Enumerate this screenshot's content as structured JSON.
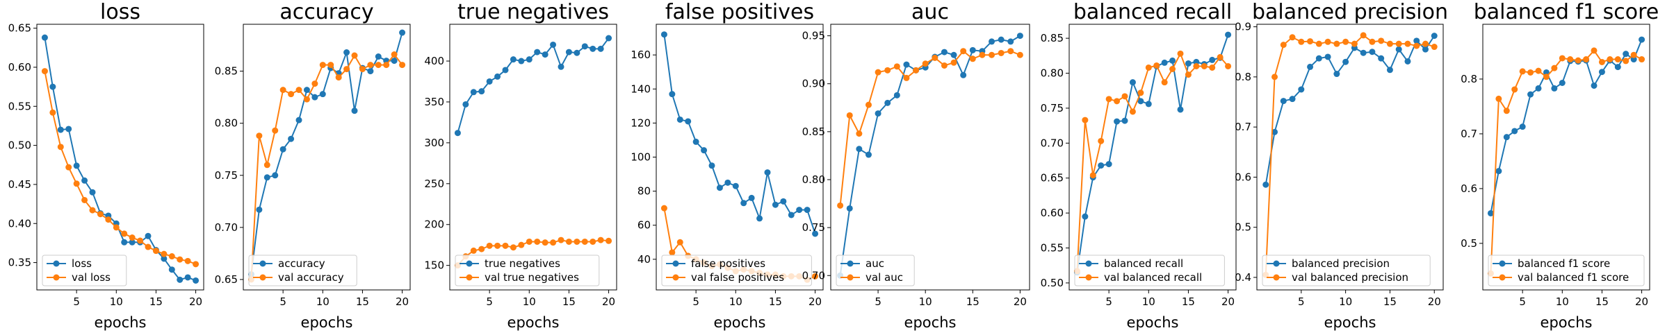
{
  "colors": {
    "train": "#1f77b4",
    "val": "#ff7f0e"
  },
  "chart_data": [
    {
      "type": "line",
      "title": "loss",
      "xlabel": "epochs",
      "ylabel": "",
      "xlim": [
        0.0,
        21.0
      ],
      "ylim": [
        0.315,
        0.655
      ],
      "xticks": [
        5,
        10,
        15,
        20
      ],
      "yticks": [
        0.35,
        0.4,
        0.45,
        0.5,
        0.55,
        0.6,
        0.65
      ],
      "ytick_labels": [
        "0.35",
        "0.40",
        "0.45",
        "0.50",
        "0.55",
        "0.60",
        "0.65"
      ],
      "legend_position": "lower-left",
      "x": [
        1,
        2,
        3,
        4,
        5,
        6,
        7,
        8,
        9,
        10,
        11,
        12,
        13,
        14,
        15,
        16,
        17,
        18,
        19,
        20
      ],
      "series": [
        {
          "name": "loss",
          "values": [
            0.638,
            0.575,
            0.52,
            0.521,
            0.474,
            0.455,
            0.44,
            0.413,
            0.41,
            0.4,
            0.376,
            0.376,
            0.376,
            0.384,
            0.366,
            0.355,
            0.341,
            0.328,
            0.331,
            0.327
          ]
        },
        {
          "name": "val loss",
          "values": [
            0.595,
            0.542,
            0.498,
            0.472,
            0.451,
            0.43,
            0.417,
            0.412,
            0.405,
            0.395,
            0.387,
            0.382,
            0.378,
            0.37,
            0.365,
            0.361,
            0.358,
            0.354,
            0.352,
            0.348
          ]
        }
      ]
    },
    {
      "type": "line",
      "title": "accuracy",
      "xlabel": "epochs",
      "ylabel": "",
      "xlim": [
        0.0,
        21.0
      ],
      "ylim": [
        0.64,
        0.895
      ],
      "xticks": [
        5,
        10,
        15,
        20
      ],
      "yticks": [
        0.65,
        0.7,
        0.75,
        0.8,
        0.85
      ],
      "ytick_labels": [
        "0.65",
        "0.70",
        "0.75",
        "0.80",
        "0.85"
      ],
      "legend_position": "lower-left",
      "x": [
        1,
        2,
        3,
        4,
        5,
        6,
        7,
        8,
        9,
        10,
        11,
        12,
        13,
        14,
        15,
        16,
        17,
        18,
        19,
        20
      ],
      "series": [
        {
          "name": "accuracy",
          "values": [
            0.655,
            0.717,
            0.748,
            0.75,
            0.775,
            0.785,
            0.803,
            0.832,
            0.825,
            0.828,
            0.853,
            0.848,
            0.868,
            0.812,
            0.853,
            0.85,
            0.864,
            0.86,
            0.86,
            0.887
          ]
        },
        {
          "name": "val accuracy",
          "values": [
            0.65,
            0.788,
            0.76,
            0.793,
            0.832,
            0.828,
            0.832,
            0.823,
            0.838,
            0.856,
            0.856,
            0.844,
            0.852,
            0.865,
            0.852,
            0.856,
            0.856,
            0.856,
            0.866,
            0.856
          ]
        }
      ]
    },
    {
      "type": "line",
      "title": "true negatives",
      "xlabel": "epochs",
      "ylabel": "",
      "xlim": [
        0.0,
        21.0
      ],
      "ylim": [
        120.0,
        445.0
      ],
      "xticks": [
        5,
        10,
        15,
        20
      ],
      "yticks": [
        150,
        200,
        250,
        300,
        350,
        400
      ],
      "ytick_labels": [
        "150",
        "200",
        "250",
        "300",
        "350",
        "400"
      ],
      "legend_position": "lower-left",
      "x": [
        1,
        2,
        3,
        4,
        5,
        6,
        7,
        8,
        9,
        10,
        11,
        12,
        13,
        14,
        15,
        16,
        17,
        18,
        19,
        20
      ],
      "series": [
        {
          "name": "true negatives",
          "values": [
            312,
            347,
            362,
            363,
            375,
            381,
            389,
            402,
            400,
            402,
            411,
            408,
            420,
            393,
            411,
            410,
            418,
            415,
            415,
            428
          ]
        },
        {
          "name": "val true negatives",
          "values": [
            150,
            161,
            168,
            170,
            174,
            174,
            174,
            172,
            175,
            179,
            179,
            178,
            178,
            181,
            179,
            179,
            179,
            179,
            181,
            180
          ]
        }
      ]
    },
    {
      "type": "line",
      "title": "false positives",
      "xlabel": "epochs",
      "ylabel": "",
      "xlim": [
        0.0,
        21.0
      ],
      "ylim": [
        22.0,
        178.0
      ],
      "xticks": [
        5,
        10,
        15,
        20
      ],
      "yticks": [
        40,
        60,
        80,
        100,
        120,
        140,
        160
      ],
      "ytick_labels": [
        "40",
        "60",
        "80",
        "100",
        "120",
        "140",
        "160"
      ],
      "legend_position": "lower-left",
      "x": [
        1,
        2,
        3,
        4,
        5,
        6,
        7,
        8,
        9,
        10,
        11,
        12,
        13,
        14,
        15,
        16,
        17,
        18,
        19,
        20
      ],
      "series": [
        {
          "name": "false positives",
          "values": [
            172,
            137,
            122,
            121,
            109,
            104,
            95,
            82,
            85,
            83,
            73,
            76,
            64,
            91,
            72,
            74,
            66,
            69,
            69,
            55
          ]
        },
        {
          "name": "val false positives",
          "values": [
            70,
            44,
            50,
            42,
            40,
            38,
            36,
            37,
            35,
            33,
            34,
            33,
            32,
            31,
            31,
            30,
            30,
            30,
            28,
            30
          ]
        }
      ]
    },
    {
      "type": "line",
      "title": "auc",
      "xlabel": "epochs",
      "ylabel": "",
      "xlim": [
        0.0,
        21.0
      ],
      "ylim": [
        0.685,
        0.962
      ],
      "xticks": [
        5,
        10,
        15,
        20
      ],
      "yticks": [
        0.7,
        0.75,
        0.8,
        0.85,
        0.9,
        0.95
      ],
      "ytick_labels": [
        "0.70",
        "0.75",
        "0.80",
        "0.85",
        "0.90",
        "0.95"
      ],
      "legend_position": "lower-left",
      "x": [
        1,
        2,
        3,
        4,
        5,
        6,
        7,
        8,
        9,
        10,
        11,
        12,
        13,
        14,
        15,
        16,
        17,
        18,
        19,
        20
      ],
      "series": [
        {
          "name": "auc",
          "values": [
            0.7,
            0.77,
            0.832,
            0.826,
            0.869,
            0.88,
            0.888,
            0.92,
            0.914,
            0.917,
            0.928,
            0.933,
            0.93,
            0.909,
            0.935,
            0.934,
            0.944,
            0.946,
            0.944,
            0.95
          ]
        },
        {
          "name": "val auc",
          "values": [
            0.773,
            0.867,
            0.848,
            0.878,
            0.912,
            0.914,
            0.918,
            0.906,
            0.914,
            0.921,
            0.927,
            0.919,
            0.922,
            0.934,
            0.926,
            0.93,
            0.93,
            0.932,
            0.934,
            0.93
          ]
        }
      ]
    },
    {
      "type": "line",
      "title": "balanced recall",
      "xlabel": "epochs",
      "ylabel": "",
      "xlim": [
        0.0,
        21.0
      ],
      "ylim": [
        0.49,
        0.87
      ],
      "xticks": [
        5,
        10,
        15,
        20
      ],
      "yticks": [
        0.5,
        0.55,
        0.6,
        0.65,
        0.7,
        0.75,
        0.8,
        0.85
      ],
      "ytick_labels": [
        "0.50",
        "0.55",
        "0.60",
        "0.65",
        "0.70",
        "0.75",
        "0.80",
        "0.85"
      ],
      "legend_position": "lower-left",
      "x": [
        1,
        2,
        3,
        4,
        5,
        6,
        7,
        8,
        9,
        10,
        11,
        12,
        13,
        14,
        15,
        16,
        17,
        18,
        19,
        20
      ],
      "series": [
        {
          "name": "balanced recall",
          "values": [
            0.515,
            0.595,
            0.651,
            0.668,
            0.67,
            0.731,
            0.732,
            0.787,
            0.76,
            0.756,
            0.81,
            0.815,
            0.818,
            0.748,
            0.814,
            0.816,
            0.813,
            0.819,
            0.822,
            0.855
          ]
        },
        {
          "name": "val balanced recall",
          "values": [
            0.517,
            0.733,
            0.654,
            0.703,
            0.763,
            0.76,
            0.767,
            0.745,
            0.772,
            0.808,
            0.811,
            0.787,
            0.806,
            0.828,
            0.798,
            0.81,
            0.81,
            0.808,
            0.823,
            0.81
          ]
        }
      ]
    },
    {
      "type": "line",
      "title": "balanced precision",
      "xlabel": "epochs",
      "ylabel": "",
      "xlim": [
        0.0,
        21.0
      ],
      "ylim": [
        0.375,
        0.905
      ],
      "xticks": [
        5,
        10,
        15,
        20
      ],
      "yticks": [
        0.4,
        0.5,
        0.6,
        0.7,
        0.8,
        0.9
      ],
      "ytick_labels": [
        "0.4",
        "0.5",
        "0.6",
        "0.7",
        "0.8",
        "0.9"
      ],
      "legend_position": "lower-left",
      "x": [
        1,
        2,
        3,
        4,
        5,
        6,
        7,
        8,
        9,
        10,
        11,
        12,
        13,
        14,
        15,
        16,
        17,
        18,
        19,
        20
      ],
      "series": [
        {
          "name": "balanced precision",
          "values": [
            0.585,
            0.69,
            0.752,
            0.756,
            0.775,
            0.82,
            0.837,
            0.84,
            0.806,
            0.83,
            0.858,
            0.848,
            0.85,
            0.837,
            0.814,
            0.855,
            0.831,
            0.872,
            0.855,
            0.882
          ]
        },
        {
          "name": "val balanced precision",
          "values": [
            0.405,
            0.8,
            0.864,
            0.879,
            0.87,
            0.871,
            0.866,
            0.87,
            0.866,
            0.87,
            0.866,
            0.883,
            0.87,
            0.872,
            0.866,
            0.866,
            0.866,
            0.862,
            0.866,
            0.86
          ]
        }
      ]
    },
    {
      "type": "line",
      "title": "balanced f1 score",
      "xlabel": "epochs",
      "ylabel": "",
      "xlim": [
        0.0,
        21.0
      ],
      "ylim": [
        0.415,
        0.9
      ],
      "xticks": [
        5,
        10,
        15,
        20
      ],
      "yticks": [
        0.5,
        0.6,
        0.7,
        0.8
      ],
      "ytick_labels": [
        "0.5",
        "0.6",
        "0.7",
        "0.8"
      ],
      "legend_position": "lower-left",
      "x": [
        1,
        2,
        3,
        4,
        5,
        6,
        7,
        8,
        9,
        10,
        11,
        12,
        13,
        14,
        15,
        16,
        17,
        18,
        19,
        20
      ],
      "series": [
        {
          "name": "balanced f1 score",
          "values": [
            0.555,
            0.632,
            0.694,
            0.705,
            0.713,
            0.772,
            0.783,
            0.812,
            0.783,
            0.793,
            0.833,
            0.832,
            0.834,
            0.788,
            0.813,
            0.834,
            0.822,
            0.846,
            0.836,
            0.872
          ]
        },
        {
          "name": "val balanced f1 score",
          "values": [
            0.445,
            0.764,
            0.742,
            0.781,
            0.814,
            0.812,
            0.815,
            0.804,
            0.82,
            0.838,
            0.836,
            0.834,
            0.836,
            0.852,
            0.831,
            0.836,
            0.836,
            0.833,
            0.844,
            0.836
          ]
        }
      ]
    }
  ]
}
